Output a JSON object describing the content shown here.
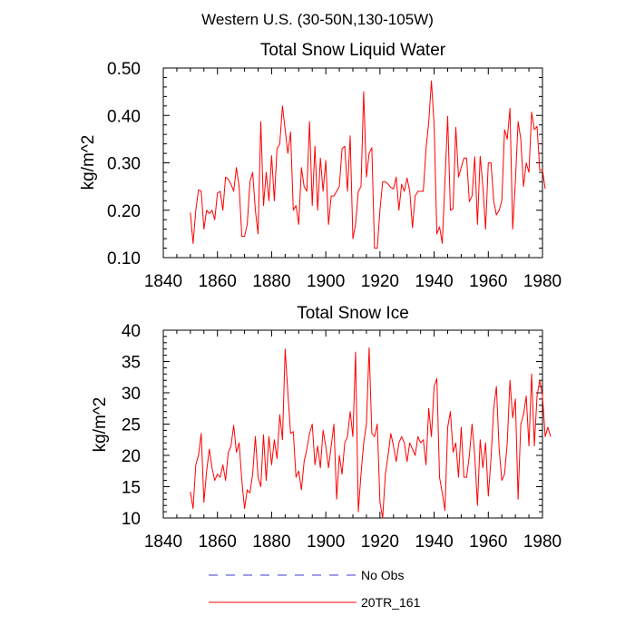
{
  "suptitle": "Western U.S. (30-50N,130-105W)",
  "legend": [
    {
      "label": "No Obs",
      "color": "#3b3bd1",
      "style": "dashed"
    },
    {
      "label": "20TR_161",
      "color": "#ff0000",
      "style": "solid"
    }
  ],
  "chart_data": [
    {
      "type": "line",
      "title": "Total Snow Liquid Water",
      "xlabel": "",
      "ylabel": "kg/m^2",
      "xlim": [
        1840,
        1980
      ],
      "ylim": [
        0.1,
        0.5
      ],
      "xticks": [
        "1840",
        "1860",
        "1880",
        "1900",
        "1920",
        "1940",
        "1960",
        "1980"
      ],
      "yticks": [
        "0.10",
        "0.20",
        "0.30",
        "0.40",
        "0.50"
      ],
      "series": [
        {
          "name": "20TR_161",
          "color": "#ff0000",
          "x_start": 1850,
          "values": [
            0.195,
            0.13,
            0.2,
            0.243,
            0.24,
            0.16,
            0.2,
            0.193,
            0.2,
            0.18,
            0.236,
            0.24,
            0.2,
            0.27,
            0.265,
            0.255,
            0.24,
            0.29,
            0.25,
            0.145,
            0.145,
            0.17,
            0.26,
            0.28,
            0.2,
            0.15,
            0.387,
            0.21,
            0.28,
            0.22,
            0.315,
            0.22,
            0.33,
            0.34,
            0.42,
            0.37,
            0.32,
            0.365,
            0.2,
            0.21,
            0.17,
            0.29,
            0.25,
            0.24,
            0.387,
            0.21,
            0.335,
            0.2,
            0.31,
            0.24,
            0.305,
            0.17,
            0.23,
            0.23,
            0.24,
            0.25,
            0.33,
            0.335,
            0.24,
            0.357,
            0.14,
            0.17,
            0.24,
            0.25,
            0.45,
            0.27,
            0.32,
            0.332,
            0.12,
            0.12,
            0.2,
            0.26,
            0.26,
            0.255,
            0.248,
            0.245,
            0.27,
            0.2,
            0.255,
            0.24,
            0.268,
            0.24,
            0.163,
            0.23,
            0.24,
            0.24,
            0.24,
            0.33,
            0.385,
            0.473,
            0.38,
            0.15,
            0.165,
            0.13,
            0.26,
            0.398,
            0.2,
            0.203,
            0.375,
            0.27,
            0.29,
            0.31,
            0.31,
            0.218,
            0.23,
            0.313,
            0.17,
            0.314,
            0.25,
            0.16,
            0.3,
            0.3,
            0.22,
            0.19,
            0.2,
            0.22,
            0.37,
            0.35,
            0.415,
            0.16,
            0.26,
            0.387,
            0.35,
            0.25,
            0.3,
            0.28,
            0.407,
            0.37,
            0.377,
            0.285,
            0.285,
            0.245
          ]
        }
      ]
    },
    {
      "type": "line",
      "title": "Total Snow Ice",
      "xlabel": "",
      "ylabel": "kg/m^2",
      "xlim": [
        1840,
        1980
      ],
      "ylim": [
        10,
        40
      ],
      "xticks": [
        "1840",
        "1860",
        "1880",
        "1900",
        "1920",
        "1940",
        "1960",
        "1980"
      ],
      "yticks": [
        "10",
        "15",
        "20",
        "25",
        "30",
        "35",
        "40"
      ],
      "series": [
        {
          "name": "20TR_161",
          "color": "#ff0000",
          "x_start": 1850,
          "values": [
            14.2,
            11.5,
            18.5,
            20,
            23.5,
            12.5,
            17.5,
            21,
            18,
            16,
            17,
            16.5,
            18.5,
            16,
            20.5,
            21.5,
            24.8,
            20.5,
            22,
            16,
            11.5,
            14.5,
            14,
            17,
            23,
            16.5,
            15,
            23.3,
            16,
            23,
            18.5,
            22.5,
            19.5,
            26.5,
            22.5,
            37,
            30,
            23.5,
            23.8,
            16.5,
            17.5,
            14.5,
            19,
            21,
            23.5,
            25,
            18.5,
            21.5,
            18,
            24,
            21.5,
            18,
            21.5,
            25,
            13,
            20,
            17,
            22,
            23,
            27,
            23,
            36.5,
            11,
            17,
            22,
            25,
            37.2,
            23.5,
            23,
            25,
            12.5,
            10,
            17,
            20,
            23.5,
            21.5,
            19,
            22,
            23,
            22,
            19,
            22,
            21,
            20,
            23,
            22,
            22.5,
            18.5,
            27.5,
            23,
            31,
            32.3,
            16.5,
            14,
            11.2,
            24.5,
            27,
            20.5,
            22,
            16.5,
            24.5,
            16.5,
            16.5,
            20,
            25,
            20,
            12,
            22.5,
            18,
            22,
            13.5,
            19.5,
            27.5,
            31,
            21,
            16,
            17,
            22,
            32,
            26,
            29,
            13,
            25,
            26.5,
            29.5,
            21.5,
            33,
            21.5,
            29.5,
            32,
            29.5,
            23,
            24.5,
            23
          ]
        }
      ]
    }
  ]
}
